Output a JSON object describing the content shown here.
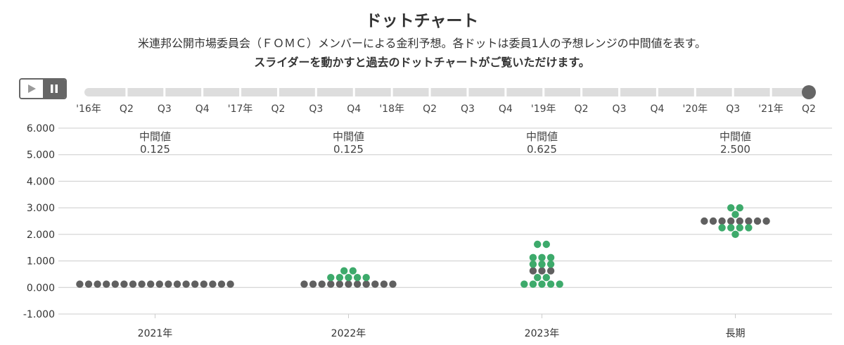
{
  "title": "ドットチャート",
  "subtitle": "米連邦公開市場委員会（ＦＯＭＣ）メンバーによる金利予想。各ドットは委員1人の予想レンジの中間値を表す。",
  "instruction": "スライダーを動かすと過去のドットチャートがご覧いただけます。",
  "player": {
    "play_icon": "play-icon",
    "pause_icon": "pause-icon"
  },
  "slider": {
    "labels": [
      "'16年",
      "Q2",
      "Q3",
      "Q4",
      "'17年",
      "Q2",
      "Q3",
      "Q4",
      "'18年",
      "Q2",
      "Q3",
      "Q4",
      "'19年",
      "Q2",
      "Q3",
      "Q4",
      "'20年",
      "Q3",
      "'21年",
      "Q2"
    ],
    "selected_index": 19
  },
  "colors": {
    "gray": "#606060",
    "green": "#3daa6b",
    "grid": "#cccccc",
    "track": "#dddddd",
    "handle": "#666666"
  },
  "chart_data": {
    "type": "scatter",
    "categories": [
      "2021年",
      "2022年",
      "2023年",
      "長期"
    ],
    "ylim": [
      -1,
      6
    ],
    "y_ticks": [
      "6.000",
      "5.000",
      "4.000",
      "3.000",
      "2.000",
      "1.000",
      "0.000",
      "-1.000"
    ],
    "median_label": "中間値",
    "medians": [
      "0.125",
      "0.125",
      "0.625",
      "2.500"
    ],
    "series": [
      {
        "color": "gray",
        "points": [
          {
            "x": "2021年",
            "y": 0.125,
            "count": 18
          },
          {
            "x": "2022年",
            "y": 0.125,
            "count": 11
          },
          {
            "x": "2023年",
            "y": 0.625,
            "count": 3
          },
          {
            "x": "長期",
            "y": 2.5,
            "count": 8
          }
        ]
      },
      {
        "color": "green",
        "points": [
          {
            "x": "2022年",
            "y": 0.375,
            "count": 5
          },
          {
            "x": "2022年",
            "y": 0.625,
            "count": 2
          },
          {
            "x": "2023年",
            "y": 0.125,
            "count": 5
          },
          {
            "x": "2023年",
            "y": 0.375,
            "count": 2
          },
          {
            "x": "2023年",
            "y": 0.875,
            "count": 3
          },
          {
            "x": "2023年",
            "y": 1.125,
            "count": 3
          },
          {
            "x": "2023年",
            "y": 1.625,
            "count": 2
          },
          {
            "x": "長期",
            "y": 2.0,
            "count": 1
          },
          {
            "x": "長期",
            "y": 2.25,
            "count": 4
          },
          {
            "x": "長期",
            "y": 2.75,
            "count": 1
          },
          {
            "x": "長期",
            "y": 3.0,
            "count": 2
          }
        ]
      }
    ]
  }
}
